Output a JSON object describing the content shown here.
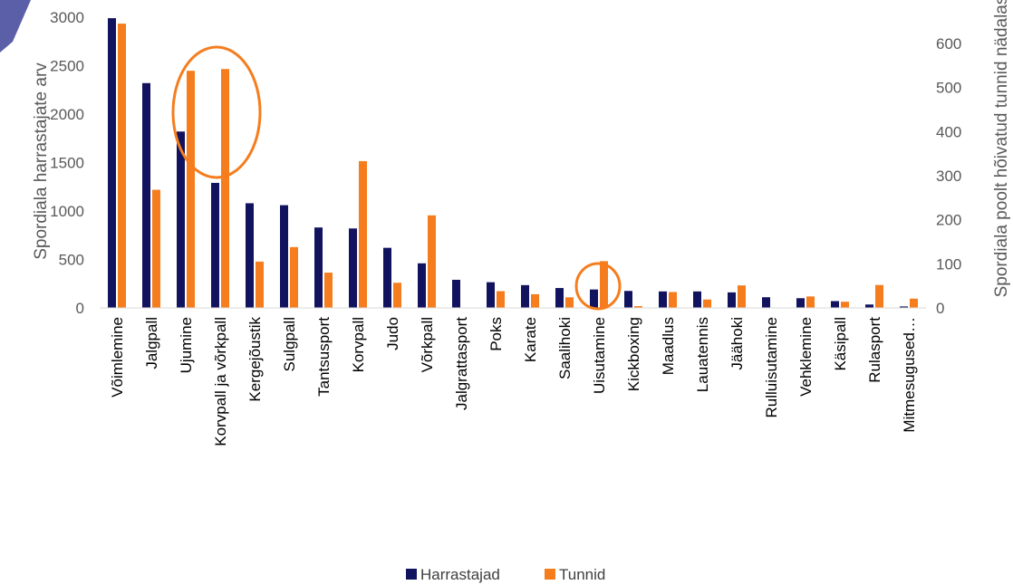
{
  "chart_data": {
    "type": "bar",
    "ylabel": "Spordiala harrastajate arv",
    "y2label": "Spordiala poolt hõivatud tunnid nädalas",
    "ylim": [
      0,
      3000
    ],
    "y2lim": [
      0,
      650
    ],
    "yticks": [
      0,
      500,
      1000,
      1500,
      2000,
      2500,
      3000
    ],
    "y2ticks": [
      0,
      100,
      200,
      300,
      400,
      500,
      600
    ],
    "grid": false,
    "legend_position": "bottom",
    "categories": [
      "Võimlemine",
      "Jalgpall",
      "Ujumine",
      "Korvpall ja võrkpall",
      "Kergejõustik",
      "Sulgpall",
      "Tantsusport",
      "Korvpall",
      "Judo",
      "Võrkpall",
      "Jalgrattasport",
      "Poks",
      "Karate",
      "Saalihoki",
      "Uisutamine",
      "Kickboxing",
      "Maadlus",
      "Lauatennis",
      "Jäähoki",
      "Rulluisutamine",
      "Vehklemine",
      "Käsipall",
      "Rulasport",
      "Mitmesugused…"
    ],
    "series": [
      {
        "name": "Harrastajad",
        "axis": "left",
        "color": "#12135e",
        "values": [
          2990,
          2320,
          1820,
          1290,
          1080,
          1060,
          830,
          820,
          620,
          460,
          290,
          265,
          235,
          205,
          190,
          175,
          170,
          170,
          160,
          110,
          100,
          70,
          35,
          15
        ]
      },
      {
        "name": "Tunnid",
        "axis": "right",
        "color": "#f57d1e",
        "values": [
          645,
          268,
          538,
          542,
          105,
          138,
          80,
          333,
          57,
          210,
          0,
          38,
          31,
          24,
          106,
          4,
          36,
          19,
          51,
          0,
          26,
          14,
          52,
          21
        ]
      }
    ],
    "highlight_circles": [
      "Ujumine–Korvpall ja võrkpall",
      "Uisutamine"
    ]
  }
}
